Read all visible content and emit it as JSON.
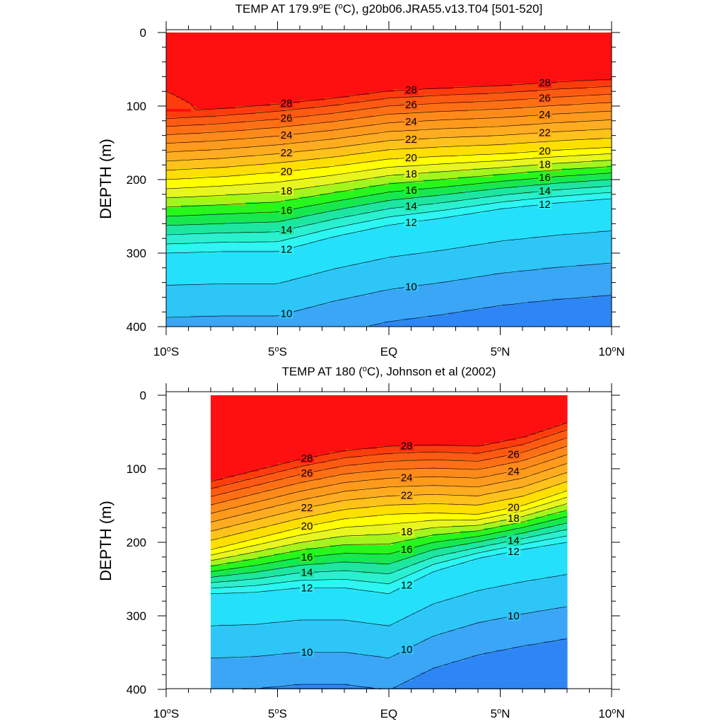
{
  "chart_data": [
    {
      "type": "contour",
      "title": "TEMP AT 179.9°E (°C), g20b06.JRA55.v13.T04 [501-520]",
      "title_parts": {
        "pre": "TEMP AT 179.9",
        "deg": "o",
        "mid": "E (",
        "deg2": "o",
        "post": "C), g20b06.JRA55.v13.T04 [501-520]"
      },
      "ylabel": "DEPTH (m)",
      "xlabel": "",
      "xlim": [
        -10,
        10
      ],
      "ylim": [
        400,
        0
      ],
      "y_ticks": [
        0,
        100,
        200,
        300,
        400
      ],
      "x_ticks": [
        -10,
        -5,
        0,
        5,
        10
      ],
      "x_tick_labels": [
        {
          "num": "10",
          "deg": "o",
          "hem": "S"
        },
        {
          "num": "5",
          "deg": "o",
          "hem": "S"
        },
        {
          "num": "EQ",
          "deg": "",
          "hem": ""
        },
        {
          "num": "5",
          "deg": "o",
          "hem": "N"
        },
        {
          "num": "10",
          "deg": "o",
          "hem": "N"
        }
      ],
      "data_xrange": [
        -10,
        10
      ],
      "contour_interval": 1,
      "contour_labels": [
        "28",
        "28",
        "28",
        "26",
        "26",
        "26",
        "24",
        "24",
        "24",
        "22",
        "22",
        "22",
        "20",
        "20",
        "20",
        "18",
        "18",
        "18",
        "16",
        "16",
        "16",
        "14",
        "14",
        "14",
        "12",
        "12",
        "12",
        "10",
        "10"
      ],
      "thermocline": {
        "x": [
          -10,
          -7.5,
          -5,
          -2.5,
          0,
          2.5,
          5,
          7.5,
          10
        ],
        "depth_20C": [
          200,
          196,
          190,
          182,
          172,
          168,
          165,
          160,
          156
        ],
        "depth_12C": [
          300,
          298,
          298,
          278,
          262,
          252,
          240,
          232,
          226
        ]
      }
    },
    {
      "type": "contour",
      "title": "TEMP AT 180 (°C), Johnson et al (2002)",
      "title_parts": {
        "pre": "TEMP AT 180 (",
        "deg": "o",
        "post": "C), Johnson et al (2002)"
      },
      "ylabel": "DEPTH (m)",
      "xlabel": "",
      "xlim": [
        -10,
        10
      ],
      "ylim": [
        400,
        0
      ],
      "y_ticks": [
        0,
        100,
        200,
        300,
        400
      ],
      "x_ticks": [
        -10,
        -5,
        0,
        5,
        10
      ],
      "x_tick_labels": [
        {
          "num": "10",
          "deg": "o",
          "hem": "S"
        },
        {
          "num": "5",
          "deg": "o",
          "hem": "S"
        },
        {
          "num": "EQ",
          "deg": "",
          "hem": ""
        },
        {
          "num": "5",
          "deg": "o",
          "hem": "N"
        },
        {
          "num": "10",
          "deg": "o",
          "hem": "N"
        }
      ],
      "data_xrange": [
        -8,
        8
      ],
      "contour_interval": 1,
      "contour_labels": [
        "28",
        "28",
        "26",
        "26",
        "24",
        "24",
        "22",
        "22",
        "20",
        "20",
        "18",
        "18",
        "16",
        "16",
        "14",
        "14",
        "12",
        "12",
        "12",
        "10",
        "10",
        "10"
      ],
      "thermocline": {
        "x": [
          -8,
          -6,
          -4,
          -2,
          0,
          2,
          4,
          6,
          8
        ],
        "depth_20C": [
          210,
          195,
          180,
          168,
          162,
          160,
          162,
          150,
          130
        ],
        "depth_12C": [
          270,
          268,
          262,
          262,
          270,
          240,
          222,
          210,
          200
        ]
      }
    }
  ],
  "colors": {
    "palette": [
      "#0000e5",
      "#0d2bf2",
      "#1e5ef7",
      "#2e86f5",
      "#3aa6f5",
      "#2ec6f7",
      "#25e0fb",
      "#2cf5f2",
      "#2af0d0",
      "#1de6a0",
      "#17e84e",
      "#27f71b",
      "#a3f51c",
      "#e9f51e",
      "#ffff00",
      "#ffdf00",
      "#ffc21a",
      "#ffac20",
      "#ff9a1c",
      "#ff8a1a",
      "#ff7015",
      "#ff5a12",
      "#ff3d0c",
      "#ff1010",
      "#e40000"
    ],
    "line": "#000000"
  }
}
